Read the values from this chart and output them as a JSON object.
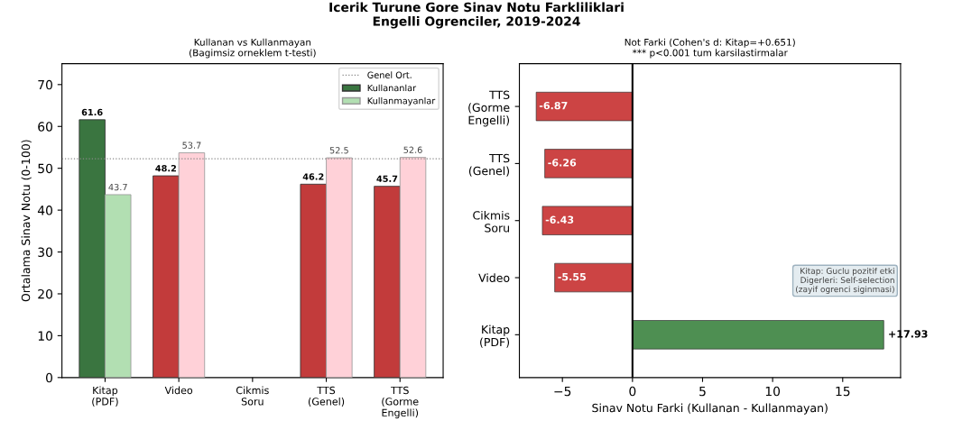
{
  "chart_data": [
    {
      "type": "bar",
      "title": "Icerik Turune Gore Sinav Notu Farkliliklari\nEngelli Ogrenciler, 2019-2024",
      "subtitle": "Kullanan vs Kullanmayan\n(Bagimsiz orneklem t-testi)",
      "ylabel": "Ortalama Sinav Notu (0-100)",
      "categories": [
        "Kitap\n(PDF)",
        "Video",
        "Cikmis\nSoru",
        "TTS\n(Genel)",
        "TTS\n(Gorme\nEngelli)"
      ],
      "series": [
        {
          "name": "Kullananlar",
          "color": "#3a7540",
          "colors": [
            "#3a7540",
            "#c23b3b",
            "#c23b3b",
            "#c23b3b",
            "#c23b3b"
          ],
          "values": [
            61.6,
            48.2,
            null,
            46.2,
            45.7
          ]
        },
        {
          "name": "Kullanmayanlar",
          "color": "#b2dfb2",
          "colors": [
            "#b2dfb2",
            "#ffd1d8",
            "#ffd1d8",
            "#ffd1d8",
            "#ffd1d8"
          ],
          "values": [
            43.7,
            53.7,
            null,
            52.5,
            52.6
          ]
        }
      ],
      "ylim": [
        0,
        75
      ],
      "yticks": [
        0,
        10,
        20,
        30,
        40,
        50,
        60,
        70
      ],
      "ref_lines": [
        {
          "axis": "y",
          "value": 52.3,
          "label": "Genel Ort.",
          "color": "#888888",
          "line_style": "dotted"
        }
      ],
      "data_labels": true,
      "legend": "top right",
      "grid": false
    },
    {
      "type": "bar",
      "orientation": "horizontal",
      "title": "Not Farki (Cohen's d: Kitap=+0.651)\n*** p<0.001 tum karsilastirmalar",
      "xlabel": "Sinav Notu Farki (Kullanan - Kullanmayan)",
      "categories": [
        "TTS\n(Gorme\nEngelli)",
        "TTS\n(Genel)",
        "Cikmis\nSoru",
        "Video",
        "Kitap\n(PDF)"
      ],
      "values": [
        -6.87,
        -6.26,
        -6.43,
        -5.55,
        17.93
      ],
      "colors": [
        "#cc4444",
        "#cc4444",
        "#cc4444",
        "#cc4444",
        "#4e8f52"
      ],
      "value_labels": [
        "-6.87",
        "-6.26",
        "-6.43",
        "-5.55",
        "+17.93"
      ],
      "xlim": [
        -8.07,
        19.13
      ],
      "xticks": [
        {
          "value": -5,
          "label": "−5"
        },
        0,
        5,
        10,
        15
      ],
      "ref_lines": [
        {
          "axis": "x",
          "value": 0,
          "color": "#000000",
          "line_style": "solid"
        }
      ],
      "annotations": [
        "Kitap: Guclu pozitif etki\nDigerleri: Self-selection\n(zayif ogrenci siginmasi)"
      ],
      "grid": false
    }
  ]
}
